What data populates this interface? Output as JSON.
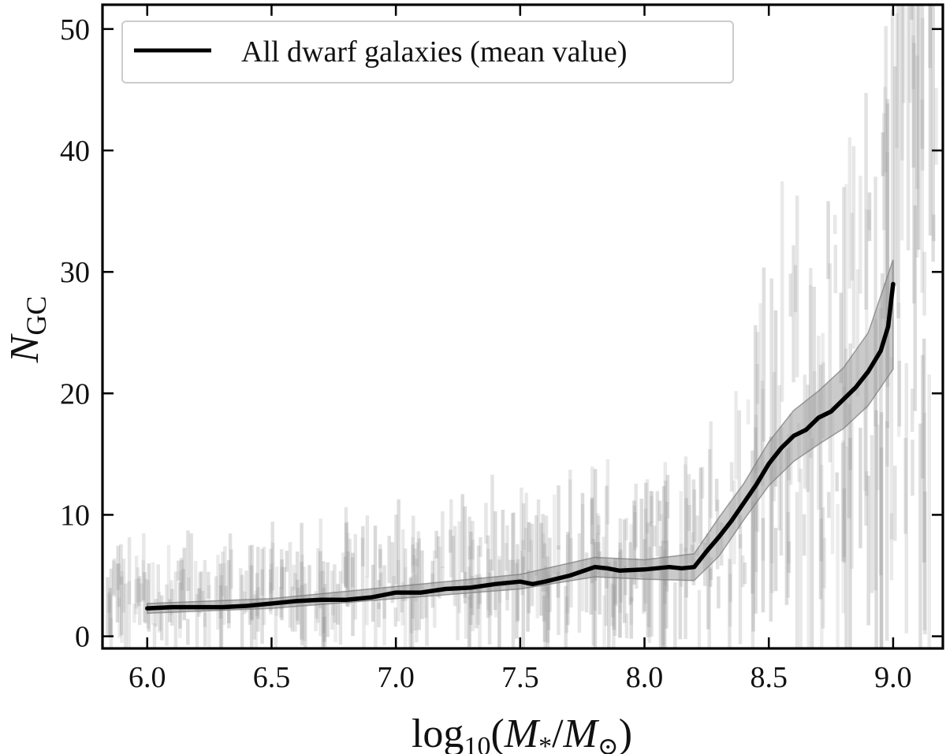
{
  "chart_data": {
    "type": "line",
    "title": "",
    "xlabel": {
      "base": "log",
      "sub": "10",
      "open": "(",
      "num": "M",
      "num_sub": "*",
      "slash": "/",
      "den": "M",
      "den_sub": "⊙",
      "close": ")"
    },
    "ylabel": {
      "base": "N",
      "sub": "GC"
    },
    "xlim": [
      5.82,
      9.2
    ],
    "ylim": [
      -1,
      52
    ],
    "xticks": [
      6.0,
      6.5,
      7.0,
      7.5,
      8.0,
      8.5,
      9.0
    ],
    "xtick_labels": [
      "6.0",
      "6.5",
      "7.0",
      "7.5",
      "8.0",
      "8.5",
      "9.0"
    ],
    "yticks": [
      0,
      10,
      20,
      30,
      40,
      50
    ],
    "ytick_labels": [
      "0",
      "10",
      "20",
      "30",
      "40",
      "50"
    ],
    "legend": {
      "label": "All dwarf galaxies (mean value)",
      "location": "upper-left"
    },
    "series": [
      {
        "name": "All dwarf galaxies (mean value)",
        "x": [
          6.0,
          6.1,
          6.2,
          6.3,
          6.4,
          6.5,
          6.6,
          6.7,
          6.8,
          6.9,
          7.0,
          7.1,
          7.2,
          7.3,
          7.4,
          7.5,
          7.55,
          7.6,
          7.7,
          7.8,
          7.85,
          7.9,
          8.0,
          8.1,
          8.15,
          8.2,
          8.25,
          8.3,
          8.35,
          8.4,
          8.45,
          8.5,
          8.55,
          8.6,
          8.65,
          8.7,
          8.75,
          8.8,
          8.85,
          8.9,
          8.95,
          8.98,
          9.0
        ],
        "y": [
          2.3,
          2.4,
          2.4,
          2.4,
          2.5,
          2.7,
          2.9,
          3.0,
          3.0,
          3.2,
          3.6,
          3.6,
          3.9,
          4.0,
          4.3,
          4.5,
          4.3,
          4.5,
          5.0,
          5.7,
          5.6,
          5.4,
          5.5,
          5.7,
          5.6,
          5.7,
          7.0,
          8.2,
          9.5,
          11.0,
          12.5,
          14.2,
          15.5,
          16.5,
          17.0,
          18.0,
          18.5,
          19.5,
          20.5,
          21.8,
          23.5,
          25.5,
          29.0
        ]
      }
    ],
    "band": {
      "name": "mean value uncertainty",
      "x": [
        6.0,
        6.5,
        7.0,
        7.5,
        7.8,
        8.0,
        8.2,
        8.3,
        8.4,
        8.5,
        8.6,
        8.7,
        8.8,
        8.9,
        9.0
      ],
      "low": [
        1.9,
        2.3,
        3.1,
        3.9,
        4.9,
        4.7,
        4.6,
        6.6,
        9.6,
        12.4,
        14.4,
        15.8,
        17.1,
        19.0,
        22.0
      ],
      "high": [
        2.7,
        3.1,
        4.1,
        5.1,
        6.5,
        6.3,
        6.8,
        9.8,
        12.6,
        16.0,
        18.6,
        20.2,
        22.1,
        25.0,
        31.0
      ]
    },
    "colors": {
      "line": "#000000",
      "band": "#9e9e9e",
      "scatter": "#9a9a9a",
      "frame": "#000000",
      "legend_edge": "#cccccc"
    }
  }
}
